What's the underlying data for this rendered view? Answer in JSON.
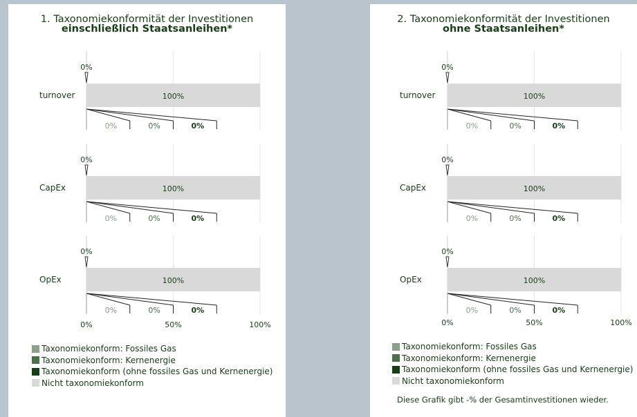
{
  "colors": {
    "fossil_gas": "#8aa08a",
    "nuclear": "#4b6e4b",
    "aligned_other": "#173e17",
    "not_aligned": "#d9d9d9",
    "text": "#173e17",
    "grid": "#e6e6e6"
  },
  "legend": [
    {
      "label": "Taxonomiekonform: Fossiles Gas",
      "color": "#8aa08a"
    },
    {
      "label": "Taxonomiekonform: Kernenergie",
      "color": "#4b6e4b"
    },
    {
      "label": "Taxonomiekonform (ohne fossiles Gas und Kernenergie)",
      "color": "#173e17"
    },
    {
      "label": "Nicht taxonomiekonform",
      "color": "#d9d9d9"
    }
  ],
  "note": "Diese Grafik gibt -% der Gesamtinvestitionen wieder.",
  "chart_data": [
    {
      "type": "bar",
      "title": "1. Taxonomiekonformität der Investitionen",
      "subtitle": "einschließlich Staatsanleihen*",
      "categories": [
        "turnover",
        "CapEx",
        "OpEx"
      ],
      "xlim": [
        0,
        100
      ],
      "x_ticks": [
        "0%",
        "50%",
        "100%"
      ],
      "grid": true,
      "legend_position": "bottom",
      "series": [
        {
          "name": "Taxonomiekonform: Fossiles Gas",
          "values": [
            0,
            0,
            0
          ],
          "labels": [
            "0%",
            "0%",
            "0%"
          ]
        },
        {
          "name": "Taxonomiekonform: Kernenergie",
          "values": [
            0,
            0,
            0
          ],
          "labels": [
            "0%",
            "0%",
            "0%"
          ]
        },
        {
          "name": "Taxonomiekonform (ohne fossiles Gas und Kernenergie)",
          "values": [
            0,
            0,
            0
          ],
          "labels": [
            "0%",
            "0%",
            "0%"
          ]
        },
        {
          "name": "Nicht taxonomiekonform",
          "values": [
            100,
            100,
            100
          ],
          "labels": [
            "100%",
            "100%",
            "100%"
          ]
        }
      ],
      "total_aligned_labels": [
        "0%",
        "0%",
        "0%"
      ]
    },
    {
      "type": "bar",
      "title": "2. Taxonomiekonformität der Investitionen",
      "subtitle": "ohne Staatsanleihen*",
      "categories": [
        "turnover",
        "CapEx",
        "OpEx"
      ],
      "xlim": [
        0,
        100
      ],
      "x_ticks": [
        "0%",
        "50%",
        "100%"
      ],
      "grid": true,
      "legend_position": "bottom",
      "series": [
        {
          "name": "Taxonomiekonform: Fossiles Gas",
          "values": [
            0,
            0,
            0
          ],
          "labels": [
            "0%",
            "0%",
            "0%"
          ]
        },
        {
          "name": "Taxonomiekonform: Kernenergie",
          "values": [
            0,
            0,
            0
          ],
          "labels": [
            "0%",
            "0%",
            "0%"
          ]
        },
        {
          "name": "Taxonomiekonform (ohne fossiles Gas und Kernenergie)",
          "values": [
            0,
            0,
            0
          ],
          "labels": [
            "0%",
            "0%",
            "0%"
          ]
        },
        {
          "name": "Nicht taxonomiekonform",
          "values": [
            100,
            100,
            100
          ],
          "labels": [
            "100%",
            "100%",
            "100%"
          ]
        }
      ],
      "total_aligned_labels": [
        "0%",
        "0%",
        "0%"
      ]
    }
  ]
}
